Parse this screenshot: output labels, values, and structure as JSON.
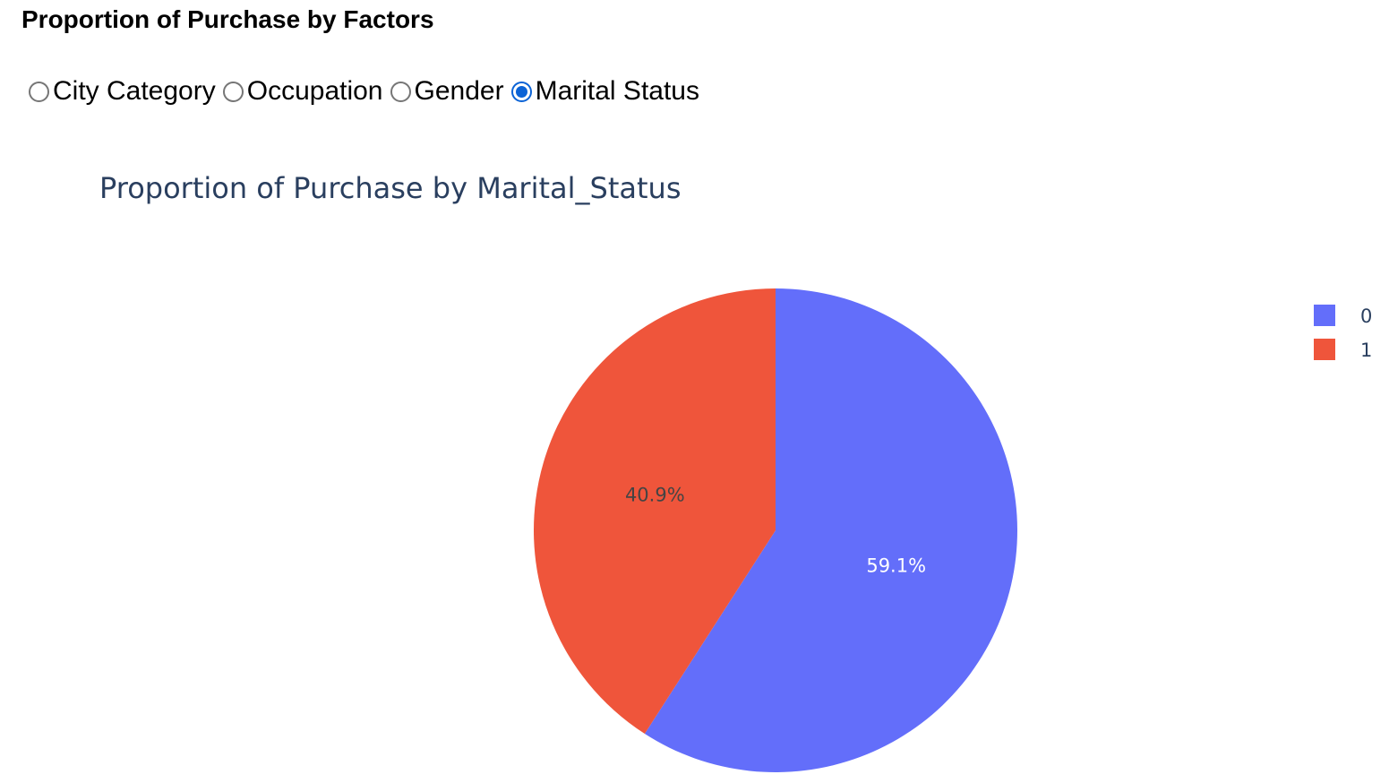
{
  "page": {
    "heading": "Proportion of Purchase by Factors"
  },
  "factor_selector": {
    "options": [
      {
        "label": "City Category",
        "selected": false
      },
      {
        "label": "Occupation",
        "selected": false
      },
      {
        "label": "Gender",
        "selected": false
      },
      {
        "label": "Marital Status",
        "selected": true
      }
    ]
  },
  "chart_data": {
    "type": "pie",
    "title": "Proportion of Purchase by Marital_Status",
    "labels": [
      "0",
      "1"
    ],
    "values": [
      59.1,
      40.9
    ],
    "value_labels": [
      "59.1%",
      "40.9%"
    ],
    "colors": [
      "#636efa",
      "#ef553b"
    ],
    "label_colors": [
      "#ffffff",
      "#444444"
    ],
    "direction": "clockwise",
    "legend": {
      "position": "top-right",
      "entries": [
        "0",
        "1"
      ]
    }
  }
}
